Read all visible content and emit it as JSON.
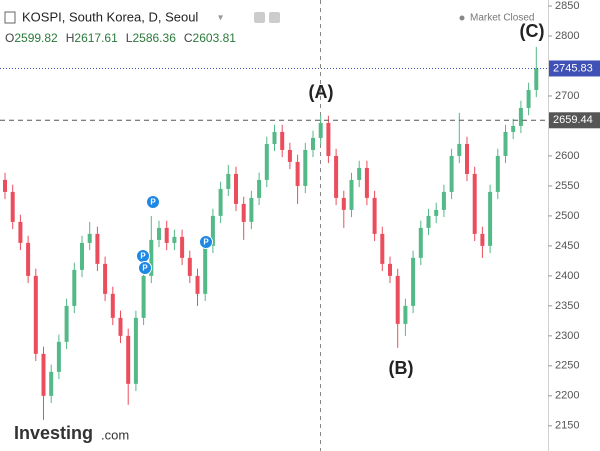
{
  "chart_data": {
    "type": "candlestick",
    "title": "KOSPI, South Korea, D, Seoul",
    "status": "Market Closed",
    "ohlc_readout": [
      {
        "label": "O",
        "value": 2599.82
      },
      {
        "label": "H",
        "value": 2617.61
      },
      {
        "label": "L",
        "value": 2586.36
      },
      {
        "label": "C",
        "value": 2603.81
      }
    ],
    "ylim": [
      2108,
      2860
    ],
    "yticks": [
      2850,
      2800,
      2700,
      2600,
      2550,
      2500,
      2450,
      2400,
      2350,
      2300,
      2250,
      2200,
      2150
    ],
    "up_color": "#53b987",
    "down_color": "#eb4d5c",
    "open": [
      2560,
      2540,
      2490,
      2455,
      2400,
      2270,
      2200,
      2240,
      2290,
      2350,
      2410,
      2455,
      2470,
      2420,
      2370,
      2330,
      2300,
      2220,
      2330,
      2400,
      2460,
      2480,
      2455,
      2465,
      2430,
      2400,
      2370,
      2450,
      2500,
      2545,
      2570,
      2520,
      2490,
      2530,
      2560,
      2620,
      2640,
      2610,
      2590,
      2550,
      2610,
      2630,
      2655,
      2600,
      2530,
      2510,
      2560,
      2580,
      2530,
      2470,
      2420,
      2400,
      2320,
      2350,
      2430,
      2480,
      2500,
      2510,
      2540,
      2600,
      2620,
      2570,
      2470,
      2450,
      2540,
      2600,
      2640,
      2650,
      2680,
      2710
    ],
    "high": [
      2572,
      2552,
      2502,
      2467,
      2412,
      2282,
      2252,
      2302,
      2362,
      2422,
      2467,
      2490,
      2482,
      2432,
      2382,
      2342,
      2312,
      2342,
      2412,
      2500,
      2492,
      2492,
      2477,
      2477,
      2442,
      2412,
      2462,
      2512,
      2557,
      2585,
      2582,
      2532,
      2542,
      2572,
      2632,
      2652,
      2652,
      2622,
      2602,
      2622,
      2642,
      2668,
      2667,
      2612,
      2542,
      2572,
      2592,
      2592,
      2542,
      2482,
      2432,
      2412,
      2362,
      2442,
      2492,
      2512,
      2522,
      2552,
      2612,
      2672,
      2632,
      2582,
      2482,
      2552,
      2612,
      2652,
      2662,
      2692,
      2722,
      2782
    ],
    "low": [
      2528,
      2478,
      2443,
      2388,
      2258,
      2160,
      2188,
      2228,
      2278,
      2338,
      2398,
      2443,
      2408,
      2358,
      2318,
      2288,
      2185,
      2208,
      2318,
      2388,
      2448,
      2443,
      2443,
      2418,
      2388,
      2350,
      2358,
      2438,
      2488,
      2533,
      2508,
      2460,
      2478,
      2518,
      2548,
      2608,
      2598,
      2578,
      2520,
      2538,
      2598,
      2618,
      2588,
      2518,
      2480,
      2498,
      2548,
      2518,
      2458,
      2408,
      2388,
      2280,
      2300,
      2338,
      2418,
      2468,
      2488,
      2498,
      2528,
      2588,
      2558,
      2458,
      2430,
      2438,
      2528,
      2588,
      2628,
      2638,
      2668,
      2698
    ],
    "close": [
      2540,
      2490,
      2455,
      2400,
      2270,
      2200,
      2240,
      2290,
      2350,
      2410,
      2455,
      2470,
      2420,
      2370,
      2330,
      2300,
      2220,
      2330,
      2400,
      2460,
      2480,
      2455,
      2465,
      2430,
      2400,
      2370,
      2450,
      2500,
      2545,
      2570,
      2520,
      2490,
      2530,
      2560,
      2620,
      2640,
      2610,
      2590,
      2550,
      2610,
      2630,
      2655,
      2600,
      2530,
      2510,
      2560,
      2580,
      2530,
      2470,
      2420,
      2400,
      2320,
      2350,
      2430,
      2480,
      2500,
      2510,
      2540,
      2600,
      2620,
      2570,
      2470,
      2450,
      2540,
      2600,
      2640,
      2650,
      2680,
      2710,
      2746
    ],
    "price_lines": [
      {
        "value": 2745.83,
        "color": "#3f51b5",
        "style": "dotted"
      },
      {
        "value": 2659.44,
        "color": "#555555",
        "style": "dashed"
      }
    ],
    "annotations": [
      "(A)",
      "(B)",
      "(C)"
    ],
    "events": [
      "P",
      "P",
      "P",
      "P"
    ],
    "logo": {
      "main": "Investing",
      "suffix": ".com"
    }
  }
}
